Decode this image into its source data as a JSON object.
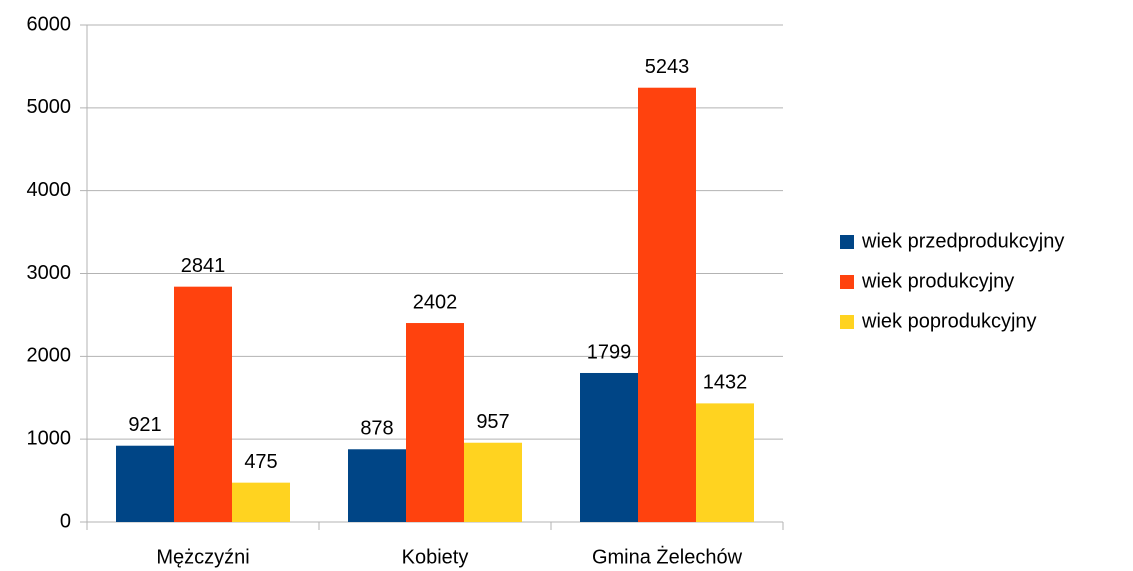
{
  "chart_data": {
    "type": "bar",
    "categories": [
      "Mężczyźni",
      "Kobiety",
      "Gmina Żelechów"
    ],
    "series": [
      {
        "name": "wiek przedprodukcyjny",
        "color": "#004586",
        "values": [
          921,
          878,
          1799
        ]
      },
      {
        "name": "wiek produkcyjny",
        "color": "#ff420e",
        "values": [
          2841,
          2402,
          5243
        ]
      },
      {
        "name": "wiek poprodukcyjny",
        "color": "#ffd320",
        "values": [
          475,
          957,
          1432
        ]
      }
    ],
    "ylim": [
      0,
      6000
    ],
    "yticks": [
      0,
      1000,
      2000,
      3000,
      4000,
      5000,
      6000
    ],
    "grid": true,
    "legend": "right",
    "data_labels": true
  }
}
